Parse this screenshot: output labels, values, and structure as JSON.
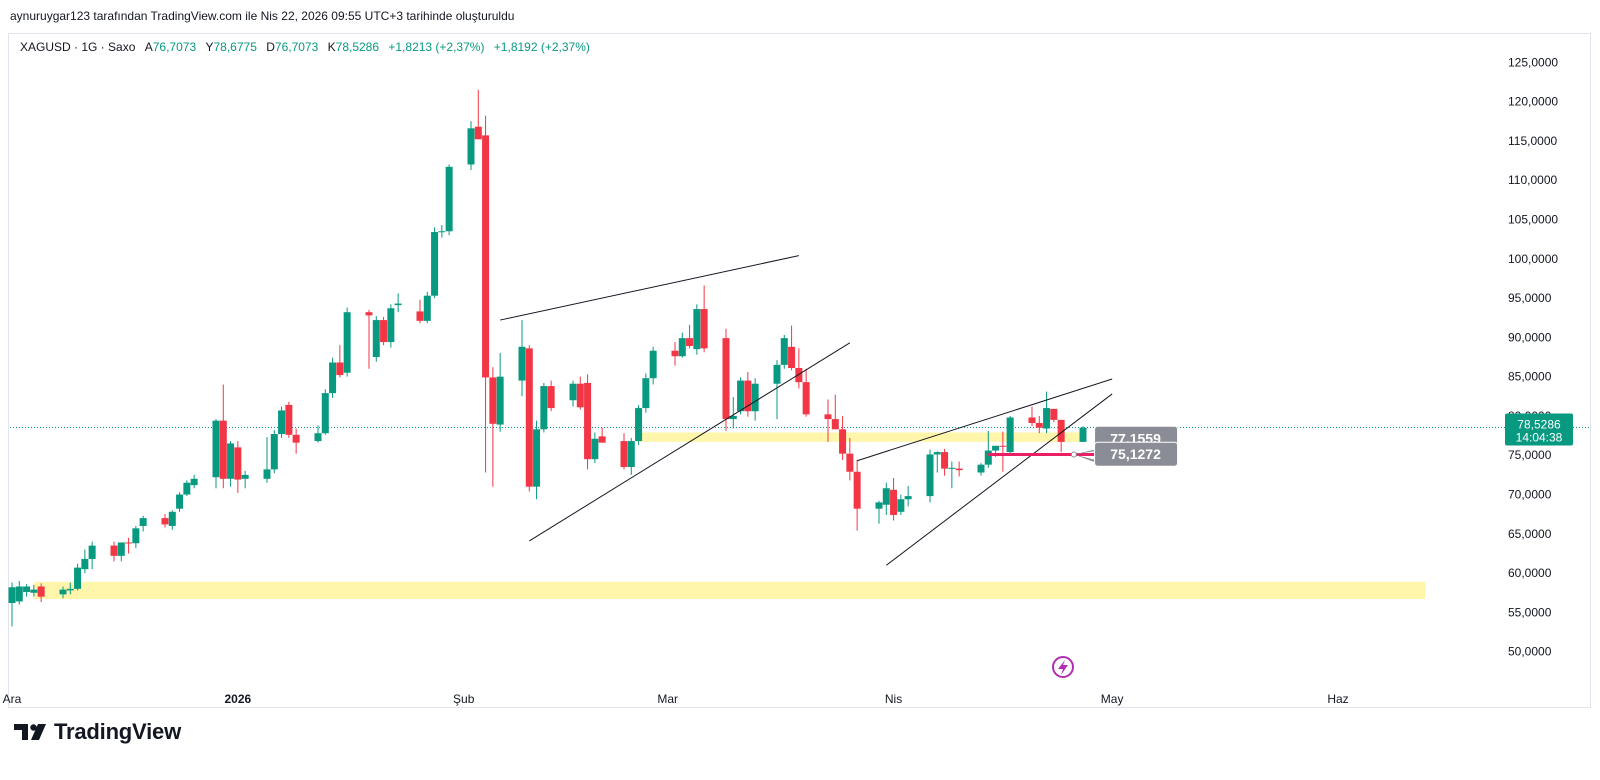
{
  "header": {
    "credit": "aynuruygar123 tarafından TradingView.com ile Nis 22, 2026 09:55 UTC+3 tarihinde oluşturuldu"
  },
  "legend": {
    "symbol": "XAGUSD · 1G · Saxo",
    "open_label": "A",
    "open": "76,7073",
    "high_label": "Y",
    "high": "78,6775",
    "low_label": "D",
    "low": "76,7073",
    "close_label": "K",
    "close": "78,5286",
    "change_1": "+1,8213 (+2,37%)",
    "change_2": "+1,8192 (+2,37%)"
  },
  "price_tag": {
    "value": "78,5286",
    "countdown": "14:04:38"
  },
  "annotation_labels": {
    "upper": "77,1559",
    "lower": "75,1272"
  },
  "footer": {
    "brand": "TradingView"
  },
  "colors": {
    "up": "#089981",
    "down": "#f23645",
    "zone": "#fff59d",
    "support_line": "#e91e63",
    "trendline": "#131722",
    "axis_text": "#131722"
  },
  "chart_data": {
    "type": "candlestick",
    "symbol": "XAGUSD",
    "interval": "1G",
    "source": "Saxo",
    "y_axis": {
      "ticks": [
        "50,0000",
        "55,0000",
        "60,0000",
        "65,0000",
        "70,0000",
        "75,0000",
        "80,0000",
        "85,0000",
        "90,0000",
        "95,0000",
        "100,0000",
        "105,0000",
        "110,0000",
        "115,0000",
        "120,0000",
        "125,0000"
      ],
      "tick_values": [
        50,
        55,
        60,
        65,
        70,
        75,
        80,
        85,
        90,
        95,
        100,
        105,
        110,
        115,
        120,
        125
      ],
      "range": [
        46.4,
        128.6
      ],
      "position": "right"
    },
    "x_axis": {
      "ticks": [
        {
          "label": "Ara",
          "date": "2025-12-01",
          "bold": false
        },
        {
          "label": "2026",
          "date": "2026-01-01",
          "bold": true
        },
        {
          "label": "Şub",
          "date": "2026-02-01",
          "bold": false
        },
        {
          "label": "Mar",
          "date": "2026-03-01",
          "bold": false
        },
        {
          "label": "Nis",
          "date": "2026-04-01",
          "bold": false
        },
        {
          "label": "May",
          "date": "2026-05-01",
          "bold": false
        },
        {
          "label": "Haz",
          "date": "2026-06-01",
          "bold": false
        }
      ]
    },
    "candles": [
      {
        "x": "2025-12-01",
        "o": 56.2,
        "h": 58.8,
        "l": 53.2,
        "c": 58.2
      },
      {
        "x": "2025-12-02",
        "o": 56.4,
        "h": 59.0,
        "l": 56.0,
        "c": 58.3
      },
      {
        "x": "2025-12-03",
        "o": 57.6,
        "h": 58.6,
        "l": 57.0,
        "c": 58.3
      },
      {
        "x": "2025-12-04",
        "o": 57.5,
        "h": 58.5,
        "l": 57.0,
        "c": 57.9
      },
      {
        "x": "2025-12-05",
        "o": 58.3,
        "h": 58.7,
        "l": 56.3,
        "c": 57.0
      },
      {
        "x": "2025-12-08",
        "o": 57.3,
        "h": 58.3,
        "l": 56.8,
        "c": 57.9
      },
      {
        "x": "2025-12-09",
        "o": 57.8,
        "h": 58.8,
        "l": 57.3,
        "c": 58.0
      },
      {
        "x": "2025-12-10",
        "o": 58.0,
        "h": 61.2,
        "l": 57.8,
        "c": 60.7
      },
      {
        "x": "2025-12-11",
        "o": 60.5,
        "h": 63.0,
        "l": 60.0,
        "c": 61.8
      },
      {
        "x": "2025-12-12",
        "o": 61.8,
        "h": 64.0,
        "l": 60.5,
        "c": 63.5
      },
      {
        "x": "2025-12-15",
        "o": 63.5,
        "h": 64.0,
        "l": 61.5,
        "c": 62.2
      },
      {
        "x": "2025-12-16",
        "o": 62.2,
        "h": 63.5,
        "l": 61.5,
        "c": 63.9
      },
      {
        "x": "2025-12-17",
        "o": 63.9,
        "h": 64.5,
        "l": 62.5,
        "c": 63.8
      },
      {
        "x": "2025-12-18",
        "o": 63.8,
        "h": 66.0,
        "l": 63.2,
        "c": 65.7
      },
      {
        "x": "2025-12-19",
        "o": 66.0,
        "h": 67.3,
        "l": 65.3,
        "c": 67.0
      },
      {
        "x": "2025-12-22",
        "o": 67.0,
        "h": 67.5,
        "l": 65.8,
        "c": 66.2
      },
      {
        "x": "2025-12-23",
        "o": 66.0,
        "h": 68.0,
        "l": 65.5,
        "c": 67.8
      },
      {
        "x": "2025-12-24",
        "o": 68.2,
        "h": 70.3,
        "l": 67.8,
        "c": 70.0
      },
      {
        "x": "2025-12-25",
        "o": 70.0,
        "h": 71.8,
        "l": 69.8,
        "c": 71.5
      },
      {
        "x": "2025-12-26",
        "o": 71.2,
        "h": 72.5,
        "l": 70.8,
        "c": 72.0
      },
      {
        "x": "2025-12-29",
        "o": 72.2,
        "h": 79.6,
        "l": 70.8,
        "c": 79.4
      },
      {
        "x": "2025-12-30",
        "o": 79.4,
        "h": 84.0,
        "l": 70.8,
        "c": 72.0
      },
      {
        "x": "2025-12-31",
        "o": 72.0,
        "h": 76.8,
        "l": 71.0,
        "c": 76.5
      },
      {
        "x": "2026-01-01",
        "o": 76.0,
        "h": 76.8,
        "l": 70.2,
        "c": 71.9
      },
      {
        "x": "2026-01-02",
        "o": 72.0,
        "h": 73.0,
        "l": 70.8,
        "c": 72.5
      },
      {
        "x": "2026-01-05",
        "o": 72.0,
        "h": 77.3,
        "l": 71.5,
        "c": 73.2
      },
      {
        "x": "2026-01-06",
        "o": 73.2,
        "h": 78.2,
        "l": 72.7,
        "c": 77.7
      },
      {
        "x": "2026-01-07",
        "o": 77.7,
        "h": 81.2,
        "l": 77.2,
        "c": 80.7
      },
      {
        "x": "2026-01-08",
        "o": 81.4,
        "h": 81.8,
        "l": 77.2,
        "c": 77.6
      },
      {
        "x": "2026-01-09",
        "o": 77.6,
        "h": 78.4,
        "l": 75.2,
        "c": 76.6
      },
      {
        "x": "2026-01-12",
        "o": 76.8,
        "h": 78.8,
        "l": 76.6,
        "c": 77.8
      },
      {
        "x": "2026-01-13",
        "o": 77.8,
        "h": 83.4,
        "l": 77.6,
        "c": 82.9
      },
      {
        "x": "2026-01-14",
        "o": 82.9,
        "h": 87.4,
        "l": 82.3,
        "c": 86.8
      },
      {
        "x": "2026-01-15",
        "o": 86.8,
        "h": 89.0,
        "l": 84.9,
        "c": 85.2
      },
      {
        "x": "2026-01-16",
        "o": 85.5,
        "h": 93.8,
        "l": 85.0,
        "c": 93.2
      },
      {
        "x": "2026-01-19",
        "o": 93.2,
        "h": 93.5,
        "l": 86.0,
        "c": 92.8
      },
      {
        "x": "2026-01-20",
        "o": 87.5,
        "h": 92.7,
        "l": 86.9,
        "c": 92.2
      },
      {
        "x": "2026-01-21",
        "o": 92.2,
        "h": 92.6,
        "l": 89.0,
        "c": 89.4
      },
      {
        "x": "2026-01-22",
        "o": 89.4,
        "h": 94.2,
        "l": 88.7,
        "c": 93.7
      },
      {
        "x": "2026-01-23",
        "o": 94.1,
        "h": 95.6,
        "l": 93.2,
        "c": 94.3
      },
      {
        "x": "2026-01-26",
        "o": 93.3,
        "h": 94.8,
        "l": 91.8,
        "c": 92.1
      },
      {
        "x": "2026-01-27",
        "o": 92.1,
        "h": 95.8,
        "l": 91.8,
        "c": 95.3
      },
      {
        "x": "2026-01-28",
        "o": 95.3,
        "h": 104.0,
        "l": 95.0,
        "c": 103.4
      },
      {
        "x": "2026-01-29",
        "o": 103.4,
        "h": 104.3,
        "l": 102.7,
        "c": 103.5
      },
      {
        "x": "2026-01-30",
        "o": 103.5,
        "h": 112.0,
        "l": 103.0,
        "c": 111.7
      },
      {
        "x": "2026-02-02",
        "o": 112.0,
        "h": 117.5,
        "l": 111.3,
        "c": 116.6
      },
      {
        "x": "2026-02-03",
        "o": 116.8,
        "h": 121.5,
        "l": 115.5,
        "c": 115.2
      },
      {
        "x": "2026-02-04",
        "o": 115.7,
        "h": 118.2,
        "l": 72.8,
        "c": 84.9
      },
      {
        "x": "2026-02-05",
        "o": 84.9,
        "h": 86.2,
        "l": 71.0,
        "c": 79.0
      },
      {
        "x": "2026-02-06",
        "o": 78.9,
        "h": 88.0,
        "l": 78.0,
        "c": 85.0
      },
      {
        "x": "2026-02-09",
        "o": 84.5,
        "h": 92.2,
        "l": 82.5,
        "c": 88.8
      },
      {
        "x": "2026-02-10",
        "o": 88.6,
        "h": 89.0,
        "l": 70.4,
        "c": 71.0
      },
      {
        "x": "2026-02-11",
        "o": 71.0,
        "h": 79.4,
        "l": 69.4,
        "c": 78.3
      },
      {
        "x": "2026-02-12",
        "o": 78.3,
        "h": 84.2,
        "l": 77.9,
        "c": 83.8
      },
      {
        "x": "2026-02-13",
        "o": 83.8,
        "h": 84.5,
        "l": 80.6,
        "c": 81.0
      },
      {
        "x": "2026-02-16",
        "o": 82.0,
        "h": 84.5,
        "l": 81.2,
        "c": 84.1
      },
      {
        "x": "2026-02-17",
        "o": 84.1,
        "h": 85.0,
        "l": 80.8,
        "c": 81.1
      },
      {
        "x": "2026-02-18",
        "o": 84.2,
        "h": 85.3,
        "l": 73.2,
        "c": 74.5
      },
      {
        "x": "2026-02-19",
        "o": 74.5,
        "h": 77.9,
        "l": 74.0,
        "c": 77.1
      },
      {
        "x": "2026-02-20",
        "o": 77.4,
        "h": 78.5,
        "l": 76.6,
        "c": 76.6
      },
      {
        "x": "2026-02-23",
        "o": 76.8,
        "h": 77.8,
        "l": 73.2,
        "c": 73.5
      },
      {
        "x": "2026-02-24",
        "o": 73.5,
        "h": 77.2,
        "l": 72.5,
        "c": 76.8
      },
      {
        "x": "2026-02-25",
        "o": 76.8,
        "h": 81.4,
        "l": 76.3,
        "c": 81.0
      },
      {
        "x": "2026-02-26",
        "o": 81.0,
        "h": 85.4,
        "l": 80.4,
        "c": 84.8
      },
      {
        "x": "2026-02-27",
        "o": 84.8,
        "h": 88.8,
        "l": 84.0,
        "c": 88.3
      },
      {
        "x": "2026-03-02",
        "o": 88.3,
        "h": 89.4,
        "l": 86.4,
        "c": 87.6
      },
      {
        "x": "2026-03-03",
        "o": 87.6,
        "h": 90.6,
        "l": 87.4,
        "c": 89.9
      },
      {
        "x": "2026-03-04",
        "o": 89.9,
        "h": 91.6,
        "l": 88.6,
        "c": 88.9
      },
      {
        "x": "2026-03-05",
        "o": 88.5,
        "h": 94.2,
        "l": 87.8,
        "c": 93.6
      },
      {
        "x": "2026-03-06",
        "o": 93.6,
        "h": 96.6,
        "l": 88.1,
        "c": 88.6
      },
      {
        "x": "2026-03-09",
        "o": 89.9,
        "h": 91.1,
        "l": 78.1,
        "c": 79.6
      },
      {
        "x": "2026-03-10",
        "o": 79.6,
        "h": 82.4,
        "l": 78.4,
        "c": 80.0
      },
      {
        "x": "2026-03-11",
        "o": 80.6,
        "h": 84.9,
        "l": 80.2,
        "c": 84.5
      },
      {
        "x": "2026-03-12",
        "o": 84.5,
        "h": 85.6,
        "l": 79.9,
        "c": 80.6
      },
      {
        "x": "2026-03-13",
        "o": 80.6,
        "h": 84.8,
        "l": 79.4,
        "c": 84.1
      },
      {
        "x": "2026-03-16",
        "o": 84.1,
        "h": 87.1,
        "l": 79.6,
        "c": 86.5
      },
      {
        "x": "2026-03-17",
        "o": 86.5,
        "h": 90.3,
        "l": 86.0,
        "c": 89.9
      },
      {
        "x": "2026-03-18",
        "o": 88.8,
        "h": 91.5,
        "l": 85.8,
        "c": 86.1
      },
      {
        "x": "2026-03-19",
        "o": 86.1,
        "h": 88.6,
        "l": 83.5,
        "c": 84.3
      },
      {
        "x": "2026-03-20",
        "o": 84.3,
        "h": 86.0,
        "l": 79.9,
        "c": 80.2
      },
      {
        "x": "2026-03-23",
        "o": 80.2,
        "h": 82.1,
        "l": 76.7,
        "c": 79.6
      },
      {
        "x": "2026-03-24",
        "o": 79.6,
        "h": 82.7,
        "l": 78.9,
        "c": 78.3
      },
      {
        "x": "2026-03-25",
        "o": 78.3,
        "h": 80.0,
        "l": 74.4,
        "c": 75.2
      },
      {
        "x": "2026-03-26",
        "o": 75.2,
        "h": 77.2,
        "l": 71.8,
        "c": 72.9
      },
      {
        "x": "2026-03-27",
        "o": 72.9,
        "h": 74.4,
        "l": 65.4,
        "c": 68.2
      },
      {
        "x": "2026-03-30",
        "o": 68.2,
        "h": 69.2,
        "l": 66.3,
        "c": 69.0
      },
      {
        "x": "2026-03-31",
        "o": 68.7,
        "h": 71.5,
        "l": 67.4,
        "c": 70.8
      },
      {
        "x": "2026-04-01",
        "o": 70.6,
        "h": 72.1,
        "l": 66.7,
        "c": 67.4
      },
      {
        "x": "2026-04-02",
        "o": 67.8,
        "h": 70.0,
        "l": 67.4,
        "c": 69.4
      },
      {
        "x": "2026-04-03",
        "o": 69.4,
        "h": 71.1,
        "l": 68.5,
        "c": 69.8
      },
      {
        "x": "2026-04-06",
        "o": 69.8,
        "h": 75.7,
        "l": 69.0,
        "c": 75.1
      },
      {
        "x": "2026-04-07",
        "o": 75.1,
        "h": 75.5,
        "l": 72.8,
        "c": 75.4
      },
      {
        "x": "2026-04-08",
        "o": 75.4,
        "h": 75.8,
        "l": 72.4,
        "c": 73.3
      },
      {
        "x": "2026-04-09",
        "o": 73.3,
        "h": 74.2,
        "l": 70.8,
        "c": 73.4
      },
      {
        "x": "2026-04-10",
        "o": 73.3,
        "h": 74.2,
        "l": 72.3,
        "c": 73.1
      },
      {
        "x": "2026-04-13",
        "o": 72.8,
        "h": 74.0,
        "l": 72.4,
        "c": 73.8
      },
      {
        "x": "2026-04-14",
        "o": 73.8,
        "h": 78.1,
        "l": 73.4,
        "c": 75.6
      },
      {
        "x": "2026-04-15",
        "o": 75.6,
        "h": 76.2,
        "l": 74.8,
        "c": 76.2
      },
      {
        "x": "2026-04-16",
        "o": 76.2,
        "h": 78.0,
        "l": 72.9,
        "c": 76.1
      },
      {
        "x": "2026-04-17",
        "o": 75.4,
        "h": 80.0,
        "l": 74.9,
        "c": 79.8
      },
      {
        "x": "2026-04-20",
        "o": 79.8,
        "h": 81.2,
        "l": 78.7,
        "c": 79.1
      },
      {
        "x": "2026-04-21",
        "o": 79.1,
        "h": 80.0,
        "l": 77.8,
        "c": 78.5
      },
      {
        "x": "2026-04-22",
        "o": 78.4,
        "h": 83.1,
        "l": 77.8,
        "c": 81.0
      },
      {
        "x": "2026-04-23",
        "o": 80.9,
        "h": 80.9,
        "l": 79.2,
        "c": 79.5
      },
      {
        "x": "2026-04-24",
        "o": 79.5,
        "h": 79.5,
        "l": 75.4,
        "c": 76.7
      },
      {
        "x": "2026-04-27",
        "o": 76.7,
        "h": 78.7,
        "l": 76.7,
        "c": 78.5
      }
    ],
    "last_price": 78.5286,
    "annotations": {
      "zones": [
        {
          "x1": "2025-12-04",
          "x2": "2026-06-13",
          "y1": 56.7,
          "y2": 58.9
        },
        {
          "x1": "2026-02-25",
          "x2": "2026-04-27",
          "y1": 76.7,
          "y2": 77.9
        }
      ],
      "trendlines": [
        {
          "x1": "2026-02-06",
          "y1": 92.2,
          "x2": "2026-03-19",
          "y2": 100.4
        },
        {
          "x1": "2026-02-10",
          "y1": 64.1,
          "x2": "2026-03-26",
          "y2": 89.3
        },
        {
          "x1": "2026-03-27",
          "y1": 74.3,
          "x2": "2026-05-01",
          "y2": 84.7
        },
        {
          "x1": "2026-03-31",
          "y1": 61.0,
          "x2": "2026-05-01",
          "y2": 82.8
        }
      ],
      "support": {
        "x1": "2026-04-14",
        "x2": "2026-04-30",
        "y": 75.1
      },
      "callouts": [
        {
          "x": "2026-04-29",
          "y": 77.1559,
          "anchor_y": 75.1
        },
        {
          "x": "2026-04-29",
          "y": 75.1272,
          "anchor_y": 75.1
        }
      ]
    }
  }
}
